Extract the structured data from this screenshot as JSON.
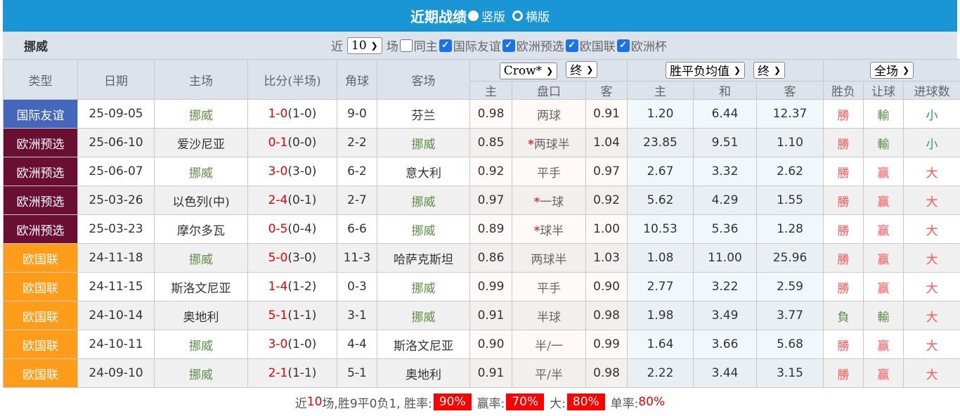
{
  "header": {
    "title": "近期战绩",
    "option_vertical": "竖版",
    "option_horizontal": "横版"
  },
  "filter": {
    "team": "挪威",
    "prefix": "近",
    "count": "10",
    "suffix": "场",
    "checks": [
      {
        "label": "同主",
        "checked": false
      },
      {
        "label": "国际友谊",
        "checked": true
      },
      {
        "label": "欧洲预选",
        "checked": true
      },
      {
        "label": "欧国联",
        "checked": true
      },
      {
        "label": "欧洲杯",
        "checked": true
      }
    ]
  },
  "columns": {
    "type": "类型",
    "date": "日期",
    "home": "主场",
    "score": "比分(半场)",
    "corner": "角球",
    "away": "客场",
    "company": "Crow*",
    "handicap_time": "终",
    "avg": "胜平负均值",
    "avg_time": "终",
    "period": "全场",
    "ah_home": "主",
    "ah_line": "盘口",
    "ah_away": "客",
    "x_home": "主",
    "x_draw": "和",
    "x_away": "客",
    "wl": "胜负",
    "ah_res": "让球",
    "ou": "进球数"
  },
  "colors": {
    "国际友谊": "#4466bb",
    "欧洲预选": "#6b0f32",
    "欧国联": "#ff9c1a"
  },
  "rows": [
    {
      "type": "国际友谊",
      "date": "25-09-05",
      "home": "挪威",
      "ft": "1-0",
      "ht": "(1-0)",
      "corner": "9-0",
      "away": "芬兰",
      "ah_h": "0.98",
      "star": "",
      "line": "两球",
      "ah_a": "0.91",
      "h": "1.20",
      "d": "6.44",
      "a": "12.37",
      "wl": "勝",
      "ah": "輸",
      "ou": "小"
    },
    {
      "type": "欧洲预选",
      "date": "25-06-10",
      "home": "爱沙尼亚",
      "ft": "0-1",
      "ht": "(0-0)",
      "corner": "2-2",
      "away": "挪威",
      "ah_h": "0.85",
      "star": "*",
      "line": "两球半",
      "ah_a": "1.04",
      "h": "23.85",
      "d": "9.51",
      "a": "1.10",
      "wl": "勝",
      "ah": "輸",
      "ou": "小"
    },
    {
      "type": "欧洲预选",
      "date": "25-06-07",
      "home": "挪威",
      "ft": "3-0",
      "ht": "(3-0)",
      "corner": "6-2",
      "away": "意大利",
      "ah_h": "0.92",
      "star": "",
      "line": "平手",
      "ah_a": "0.97",
      "h": "2.67",
      "d": "3.32",
      "a": "2.62",
      "wl": "勝",
      "ah": "赢",
      "ou": "大"
    },
    {
      "type": "欧洲预选",
      "date": "25-03-26",
      "home": "以色列(中)",
      "ft": "2-4",
      "ht": "(0-1)",
      "corner": "2-7",
      "away": "挪威",
      "ah_h": "0.97",
      "star": "*",
      "line": "一球",
      "ah_a": "0.92",
      "h": "5.62",
      "d": "4.29",
      "a": "1.55",
      "wl": "勝",
      "ah": "赢",
      "ou": "大"
    },
    {
      "type": "欧洲预选",
      "date": "25-03-23",
      "home": "摩尔多瓦",
      "ft": "0-5",
      "ht": "(0-4)",
      "corner": "6-6",
      "away": "挪威",
      "ah_h": "0.89",
      "star": "*",
      "line": "球半",
      "ah_a": "1.00",
      "h": "10.53",
      "d": "5.36",
      "a": "1.28",
      "wl": "勝",
      "ah": "赢",
      "ou": "大"
    },
    {
      "type": "欧国联",
      "date": "24-11-18",
      "home": "挪威",
      "ft": "5-0",
      "ht": "(3-0)",
      "corner": "11-3",
      "away": "哈萨克斯坦",
      "ah_h": "0.86",
      "star": "",
      "line": "两球半",
      "ah_a": "1.03",
      "h": "1.08",
      "d": "11.00",
      "a": "25.96",
      "wl": "勝",
      "ah": "赢",
      "ou": "大"
    },
    {
      "type": "欧国联",
      "date": "24-11-15",
      "home": "斯洛文尼亚",
      "ft": "1-4",
      "ht": "(1-2)",
      "corner": "0-3",
      "away": "挪威",
      "ah_h": "0.99",
      "star": "",
      "line": "平手",
      "ah_a": "0.90",
      "h": "2.77",
      "d": "3.22",
      "a": "2.59",
      "wl": "勝",
      "ah": "赢",
      "ou": "大"
    },
    {
      "type": "欧国联",
      "date": "24-10-14",
      "home": "奥地利",
      "ft": "5-1",
      "ht": "(1-1)",
      "corner": "3-1",
      "away": "挪威",
      "ah_h": "0.91",
      "star": "",
      "line": "半球",
      "ah_a": "0.98",
      "h": "1.98",
      "d": "3.49",
      "a": "3.77",
      "wl": "負",
      "ah": "輸",
      "ou": "大"
    },
    {
      "type": "欧国联",
      "date": "24-10-11",
      "home": "挪威",
      "ft": "3-0",
      "ht": "(1-0)",
      "corner": "4-4",
      "away": "斯洛文尼亚",
      "ah_h": "0.90",
      "star": "",
      "line": "半/一",
      "ah_a": "0.99",
      "h": "1.64",
      "d": "3.66",
      "a": "5.68",
      "wl": "勝",
      "ah": "赢",
      "ou": "大"
    },
    {
      "type": "欧国联",
      "date": "24-09-10",
      "home": "挪威",
      "ft": "2-1",
      "ht": "(1-1)",
      "corner": "5-1",
      "away": "奥地利",
      "ah_h": "0.91",
      "star": "",
      "line": "平/半",
      "ah_a": "0.98",
      "h": "2.22",
      "d": "3.44",
      "a": "3.15",
      "wl": "勝",
      "ah": "赢",
      "ou": "大"
    }
  ],
  "summary": {
    "p1": "近",
    "n": "10",
    "p2": "场,胜9平0负1, 胜率:",
    "win_rate": "90%",
    "p3": "赢率:",
    "ah_rate": "70%",
    "p4": "大:",
    "over_rate": "80%",
    "p5": "单率:",
    "odd_rate": "80%"
  }
}
